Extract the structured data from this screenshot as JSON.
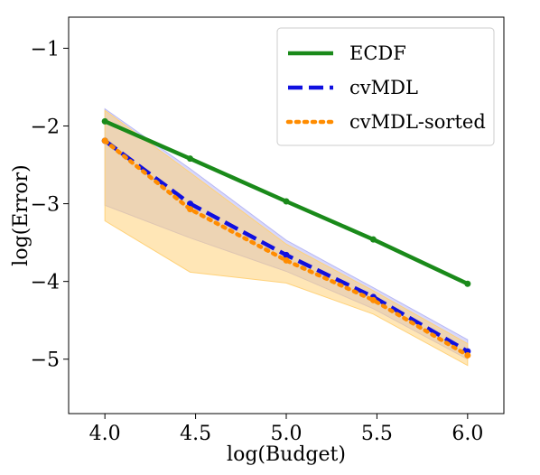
{
  "chart_data": {
    "type": "line",
    "xlabel": "log(Budget)",
    "ylabel": "log(Error)",
    "xlim": [
      3.8,
      6.2
    ],
    "ylim": [
      -5.7,
      -0.6
    ],
    "xticks": [
      4.0,
      4.5,
      5.0,
      5.5,
      6.0
    ],
    "xtick_labels": [
      "4.0",
      "4.5",
      "5.0",
      "5.5",
      "6.0"
    ],
    "yticks": [
      -1,
      -2,
      -3,
      -4,
      -5
    ],
    "ytick_labels": [
      "−1",
      "−2",
      "−3",
      "−4",
      "−5"
    ],
    "grid": false,
    "legend_position": "top-right",
    "series": [
      {
        "name": "ECDF",
        "color": "#1a8a1a",
        "style": "solid",
        "x": [
          4.0,
          4.47,
          5.0,
          5.48,
          6.0
        ],
        "y": [
          -1.94,
          -2.42,
          -2.97,
          -3.46,
          -4.03
        ]
      },
      {
        "name": "cvMDL",
        "color": "#1010e0",
        "style": "dashed",
        "x": [
          4.0,
          4.47,
          5.0,
          5.48,
          6.0
        ],
        "y": [
          -2.19,
          -3.0,
          -3.66,
          -4.2,
          -4.9
        ],
        "band_upper": [
          -1.78,
          -2.55,
          -3.47,
          -4.08,
          -4.75
        ],
        "band_lower": [
          -3.02,
          -3.44,
          -3.87,
          -4.35,
          -5.0
        ],
        "band_color": "#b8b8f5"
      },
      {
        "name": "cvMDL-sorted",
        "color": "#ff8c00",
        "style": "dotted",
        "x": [
          4.0,
          4.47,
          5.0,
          5.48,
          6.0
        ],
        "y": [
          -2.19,
          -3.07,
          -3.73,
          -4.24,
          -4.95
        ],
        "band_upper": [
          -1.8,
          -2.6,
          -3.52,
          -4.12,
          -4.8
        ],
        "band_lower": [
          -3.22,
          -3.88,
          -4.02,
          -4.42,
          -5.08
        ],
        "band_color": "#ffd27a"
      }
    ]
  }
}
